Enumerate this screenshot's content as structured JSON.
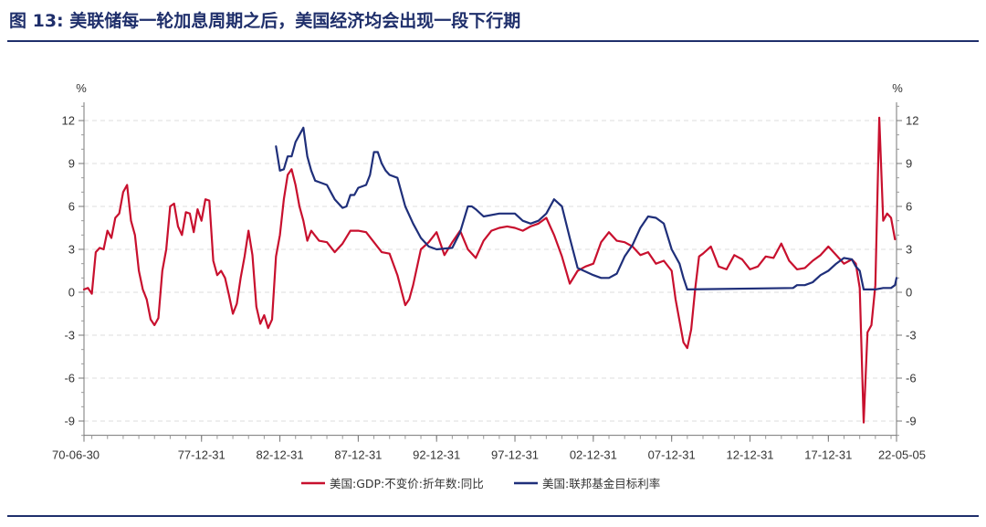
{
  "caption": {
    "prefix": "图 13:",
    "text": "美联储每一轮加息周期之后，美国经济均会出现一段下行期"
  },
  "chart_data": {
    "type": "line",
    "title": "图 13: 美联储每一轮加息周期之后，美国经济均会出现一段下行期",
    "left_unit": "%",
    "right_unit": "%",
    "xlim": [
      1970.5,
      2022.35
    ],
    "ylim": [
      -10,
      14
    ],
    "y_ticks": [
      12,
      9,
      6,
      3,
      0,
      -3,
      -6,
      -9
    ],
    "x_ticks": [
      {
        "label": "70-06-30",
        "value": 1970.5
      },
      {
        "label": "77-12-31",
        "value": 1978.0
      },
      {
        "label": "82-12-31",
        "value": 1983.0
      },
      {
        "label": "87-12-31",
        "value": 1988.0
      },
      {
        "label": "92-12-31",
        "value": 1993.0
      },
      {
        "label": "97-12-31",
        "value": 1998.0
      },
      {
        "label": "02-12-31",
        "value": 2003.0
      },
      {
        "label": "07-12-31",
        "value": 2008.0
      },
      {
        "label": "12-12-31",
        "value": 2013.0
      },
      {
        "label": "17-12-31",
        "value": 2018.0
      },
      {
        "label": "22-05-05",
        "value": 2022.35
      }
    ],
    "grid": "horizontal-dashed",
    "legend_position": "bottom-center",
    "series": [
      {
        "name": "美国:GDP:不变价:折年数:同比",
        "color": "#c8102e",
        "axis": "left",
        "x": [
          1970.5,
          1970.75,
          1971.0,
          1971.25,
          1971.5,
          1971.75,
          1972.0,
          1972.25,
          1972.5,
          1972.75,
          1973.0,
          1973.25,
          1973.5,
          1973.75,
          1974.0,
          1974.25,
          1974.5,
          1974.75,
          1975.0,
          1975.25,
          1975.5,
          1975.75,
          1976.0,
          1976.25,
          1976.5,
          1976.75,
          1977.0,
          1977.25,
          1977.5,
          1977.75,
          1978.0,
          1978.25,
          1978.5,
          1978.75,
          1979.0,
          1979.25,
          1979.5,
          1979.75,
          1980.0,
          1980.25,
          1980.5,
          1980.75,
          1981.0,
          1981.25,
          1981.5,
          1981.75,
          1982.0,
          1982.25,
          1982.5,
          1982.75,
          1983.0,
          1983.25,
          1983.5,
          1983.75,
          1984.0,
          1984.25,
          1984.5,
          1984.75,
          1985.0,
          1985.5,
          1986.0,
          1986.5,
          1987.0,
          1987.5,
          1988.0,
          1988.5,
          1989.0,
          1989.5,
          1990.0,
          1990.5,
          1991.0,
          1991.25,
          1991.5,
          1992.0,
          1992.5,
          1993.0,
          1993.5,
          1994.0,
          1994.5,
          1995.0,
          1995.5,
          1996.0,
          1996.5,
          1997.0,
          1997.5,
          1998.0,
          1998.5,
          1999.0,
          1999.5,
          2000.0,
          2000.5,
          2001.0,
          2001.5,
          2002.0,
          2002.5,
          2003.0,
          2003.5,
          2004.0,
          2004.5,
          2005.0,
          2005.5,
          2006.0,
          2006.5,
          2007.0,
          2007.5,
          2008.0,
          2008.25,
          2008.5,
          2008.75,
          2009.0,
          2009.25,
          2009.5,
          2009.75,
          2010.0,
          2010.5,
          2011.0,
          2011.5,
          2012.0,
          2012.5,
          2013.0,
          2013.5,
          2014.0,
          2014.5,
          2015.0,
          2015.5,
          2016.0,
          2016.5,
          2017.0,
          2017.5,
          2018.0,
          2018.5,
          2019.0,
          2019.5,
          2019.75,
          2020.0,
          2020.25,
          2020.5,
          2020.75,
          2021.0,
          2021.25,
          2021.5,
          2021.75,
          2022.0,
          2022.25
        ],
        "values": [
          0.2,
          0.3,
          -0.1,
          2.8,
          3.1,
          3.0,
          4.3,
          3.8,
          5.2,
          5.5,
          7.0,
          7.5,
          5.0,
          4.0,
          1.5,
          0.2,
          -0.5,
          -1.9,
          -2.3,
          -1.8,
          1.5,
          3.0,
          6.0,
          6.2,
          4.6,
          4.0,
          5.6,
          5.5,
          4.2,
          5.8,
          5.0,
          6.5,
          6.4,
          2.2,
          1.2,
          1.5,
          1.0,
          -0.2,
          -1.5,
          -0.8,
          1.0,
          2.5,
          4.3,
          2.6,
          -1.0,
          -2.2,
          -1.6,
          -2.5,
          -1.9,
          2.5,
          4.0,
          6.5,
          8.2,
          8.6,
          7.5,
          6.0,
          5.0,
          3.6,
          4.3,
          3.6,
          3.5,
          2.8,
          3.4,
          4.3,
          4.3,
          4.2,
          3.5,
          2.8,
          2.7,
          1.2,
          -0.9,
          -0.5,
          0.5,
          3.0,
          3.5,
          4.2,
          2.6,
          3.5,
          4.3,
          3.0,
          2.4,
          3.6,
          4.3,
          4.5,
          4.6,
          4.5,
          4.3,
          4.6,
          4.8,
          5.2,
          4.0,
          2.5,
          0.6,
          1.5,
          1.8,
          2.0,
          3.5,
          4.2,
          3.6,
          3.5,
          3.2,
          2.6,
          2.8,
          2.0,
          2.2,
          1.5,
          -0.5,
          -2.0,
          -3.5,
          -3.9,
          -2.6,
          0.2,
          2.5,
          2.7,
          3.2,
          1.8,
          1.6,
          2.6,
          2.3,
          1.6,
          1.8,
          2.5,
          2.4,
          3.4,
          2.2,
          1.6,
          1.7,
          2.2,
          2.6,
          3.2,
          2.6,
          2.0,
          2.3,
          2.0,
          0.3,
          -9.1,
          -2.8,
          -2.3,
          0.5,
          12.2,
          5.0,
          5.5,
          5.2,
          3.7
        ]
      },
      {
        "name": "美国:联邦基金目标利率",
        "color": "#1f2f7a",
        "axis": "right",
        "x": [
          1982.75,
          1983.0,
          1983.25,
          1983.5,
          1983.75,
          1984.0,
          1984.25,
          1984.5,
          1984.75,
          1985.0,
          1985.25,
          1985.5,
          1986.0,
          1986.25,
          1986.5,
          1987.0,
          1987.25,
          1987.5,
          1987.75,
          1988.0,
          1988.5,
          1988.75,
          1989.0,
          1989.25,
          1989.5,
          1989.75,
          1990.0,
          1990.5,
          1991.0,
          1991.5,
          1992.0,
          1992.5,
          1993.0,
          1994.0,
          1994.5,
          1995.0,
          1995.25,
          1995.5,
          1996.0,
          1997.0,
          1998.0,
          1998.5,
          1999.0,
          1999.5,
          2000.0,
          2000.5,
          2001.0,
          2001.5,
          2002.0,
          2003.0,
          2003.5,
          2004.0,
          2004.5,
          2005.0,
          2005.5,
          2006.0,
          2006.5,
          2007.0,
          2007.5,
          2008.0,
          2008.5,
          2008.75,
          2009.0,
          2015.75,
          2016.0,
          2016.5,
          2017.0,
          2017.5,
          2018.0,
          2018.5,
          2019.0,
          2019.5,
          2019.75,
          2020.0,
          2020.25,
          2021.0,
          2021.5,
          2022.0,
          2022.25,
          2022.35
        ],
        "values": [
          10.2,
          8.5,
          8.6,
          9.5,
          9.5,
          10.5,
          11.0,
          11.5,
          9.5,
          8.5,
          7.8,
          7.7,
          7.5,
          7.0,
          6.5,
          5.9,
          6.0,
          6.8,
          6.8,
          7.3,
          7.5,
          8.2,
          9.8,
          9.8,
          9.0,
          8.5,
          8.2,
          8.0,
          6.0,
          4.8,
          3.8,
          3.2,
          3.0,
          3.1,
          4.2,
          6.0,
          6.0,
          5.8,
          5.3,
          5.5,
          5.5,
          5.0,
          4.8,
          5.0,
          5.5,
          6.5,
          6.0,
          3.8,
          1.7,
          1.2,
          1.0,
          1.0,
          1.3,
          2.5,
          3.3,
          4.5,
          5.3,
          5.2,
          4.8,
          3.0,
          2.0,
          1.0,
          0.2,
          0.3,
          0.5,
          0.5,
          0.7,
          1.2,
          1.5,
          2.0,
          2.4,
          2.3,
          1.8,
          1.5,
          0.2,
          0.2,
          0.3,
          0.3,
          0.5,
          1.0
        ]
      }
    ]
  }
}
